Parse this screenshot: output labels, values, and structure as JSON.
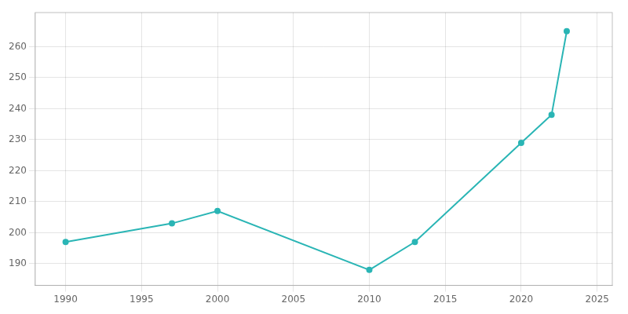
{
  "chart_data": {
    "type": "line",
    "x": [
      1990,
      1997,
      2000,
      2010,
      2013,
      2020,
      2022,
      2023
    ],
    "values": [
      197,
      203,
      207,
      188,
      197,
      229,
      238,
      265
    ],
    "color": "#2ab5b5",
    "marker": "circle",
    "xlim": [
      1988,
      2026
    ],
    "xticks": [
      1990,
      1995,
      2000,
      2005,
      2010,
      2015,
      2020,
      2025
    ],
    "ylim": [
      183,
      271
    ],
    "yticks": [
      190,
      200,
      210,
      220,
      230,
      240,
      250,
      260
    ],
    "grid": true
  }
}
